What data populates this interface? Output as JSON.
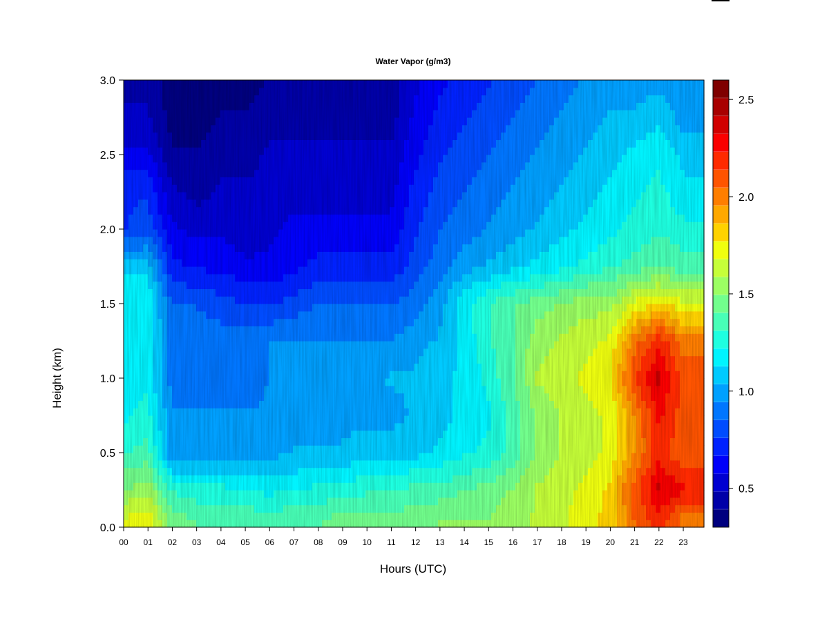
{
  "chart_data": {
    "type": "heatmap",
    "title": "Water Vapor (g/m3)",
    "xlabel": "Hours (UTC)",
    "ylabel": "Height (km)",
    "x_tick_labels": [
      "00",
      "01",
      "02",
      "03",
      "04",
      "05",
      "06",
      "07",
      "08",
      "09",
      "10",
      "11",
      "12",
      "13",
      "14",
      "15",
      "16",
      "17",
      "18",
      "19",
      "20",
      "21",
      "22",
      "23"
    ],
    "x_ticks": [
      0,
      1,
      2,
      3,
      4,
      5,
      6,
      7,
      8,
      9,
      10,
      11,
      12,
      13,
      14,
      15,
      16,
      17,
      18,
      19,
      20,
      21,
      22,
      23
    ],
    "xlim": [
      0,
      23.85
    ],
    "y_tick_labels": [
      "0.0",
      "0.5",
      "1.0",
      "1.5",
      "2.0",
      "2.5",
      "3.0"
    ],
    "y_ticks": [
      0,
      0.5,
      1.0,
      1.5,
      2.0,
      2.5,
      3.0
    ],
    "ylim": [
      0,
      3.0
    ],
    "hours": [
      0,
      1,
      2,
      3,
      4,
      5,
      6,
      7,
      8,
      9,
      10,
      11,
      12,
      13,
      14,
      15,
      16,
      17,
      18,
      19,
      20,
      21,
      22,
      23
    ],
    "heights_km": [
      0.05,
      0.25,
      0.5,
      0.75,
      1.0,
      1.25,
      1.5,
      1.75,
      2.0,
      2.25,
      2.5,
      2.75,
      3.0
    ],
    "z_values": [
      [
        1.7,
        1.5,
        1.3,
        1.2,
        1.2,
        1.15,
        1.2,
        1.1,
        0.75,
        0.75,
        0.6,
        0.5,
        0.45
      ],
      [
        1.75,
        1.55,
        1.35,
        1.25,
        1.2,
        1.2,
        1.2,
        1.1,
        0.8,
        0.75,
        0.6,
        0.5,
        0.45
      ],
      [
        1.45,
        1.3,
        0.95,
        0.95,
        0.9,
        0.9,
        0.85,
        0.7,
        0.6,
        0.5,
        0.4,
        0.35,
        0.35
      ],
      [
        1.4,
        1.25,
        0.95,
        0.95,
        0.9,
        0.9,
        0.85,
        0.65,
        0.55,
        0.45,
        0.4,
        0.35,
        0.35
      ],
      [
        1.4,
        1.25,
        1.0,
        0.95,
        0.9,
        0.9,
        0.8,
        0.65,
        0.55,
        0.5,
        0.45,
        0.4,
        0.35
      ],
      [
        1.4,
        1.2,
        1.0,
        0.95,
        0.9,
        0.9,
        0.75,
        0.6,
        0.5,
        0.5,
        0.45,
        0.4,
        0.35
      ],
      [
        1.35,
        1.2,
        1.0,
        0.95,
        0.95,
        0.95,
        0.75,
        0.6,
        0.55,
        0.5,
        0.5,
        0.45,
        0.4
      ],
      [
        1.4,
        1.2,
        1.05,
        0.95,
        0.95,
        0.95,
        0.8,
        0.65,
        0.6,
        0.55,
        0.5,
        0.45,
        0.4
      ],
      [
        1.4,
        1.25,
        1.05,
        1.0,
        1.0,
        0.95,
        0.85,
        0.7,
        0.6,
        0.55,
        0.5,
        0.45,
        0.4
      ],
      [
        1.45,
        1.25,
        1.05,
        1.0,
        1.0,
        0.95,
        0.85,
        0.7,
        0.6,
        0.55,
        0.5,
        0.45,
        0.4
      ],
      [
        1.45,
        1.3,
        1.1,
        1.0,
        1.0,
        0.95,
        0.85,
        0.7,
        0.6,
        0.55,
        0.5,
        0.45,
        0.4
      ],
      [
        1.45,
        1.3,
        1.1,
        1.0,
        1.05,
        0.95,
        0.85,
        0.7,
        0.6,
        0.55,
        0.5,
        0.45,
        0.45
      ],
      [
        1.45,
        1.35,
        1.1,
        1.05,
        1.05,
        1.0,
        0.9,
        0.8,
        0.75,
        0.7,
        0.65,
        0.6,
        0.55
      ],
      [
        1.5,
        1.35,
        1.15,
        1.1,
        1.1,
        1.05,
        1.0,
        0.9,
        0.85,
        0.8,
        0.75,
        0.7,
        0.65
      ],
      [
        1.5,
        1.4,
        1.2,
        1.15,
        1.15,
        1.15,
        1.2,
        1.0,
        0.9,
        0.85,
        0.8,
        0.75,
        0.7
      ],
      [
        1.5,
        1.45,
        1.25,
        1.2,
        1.25,
        1.3,
        1.3,
        1.05,
        0.95,
        0.9,
        0.85,
        0.8,
        0.75
      ],
      [
        1.55,
        1.5,
        1.35,
        1.35,
        1.4,
        1.4,
        1.4,
        1.1,
        1.0,
        0.95,
        0.9,
        0.85,
        0.8
      ],
      [
        1.6,
        1.6,
        1.5,
        1.5,
        1.6,
        1.55,
        1.45,
        1.15,
        1.05,
        1.0,
        0.95,
        0.9,
        0.85
      ],
      [
        1.65,
        1.65,
        1.6,
        1.6,
        1.65,
        1.6,
        1.5,
        1.2,
        1.1,
        1.05,
        1.0,
        0.95,
        0.9
      ],
      [
        1.75,
        1.7,
        1.65,
        1.65,
        1.7,
        1.65,
        1.55,
        1.25,
        1.15,
        1.1,
        1.05,
        1.0,
        0.95
      ],
      [
        1.8,
        1.8,
        1.7,
        1.7,
        1.75,
        1.7,
        1.55,
        1.3,
        1.2,
        1.15,
        1.1,
        1.05,
        1.0
      ],
      [
        2.05,
        2.1,
        1.95,
        1.95,
        2.15,
        2.0,
        1.7,
        1.35,
        1.25,
        1.2,
        1.15,
        1.05,
        1.0
      ],
      [
        2.2,
        2.35,
        2.2,
        2.25,
        2.35,
        2.2,
        1.8,
        1.4,
        1.3,
        1.25,
        1.2,
        1.1,
        1.0
      ],
      [
        2.0,
        2.25,
        2.05,
        2.1,
        2.1,
        2.0,
        1.7,
        1.35,
        1.25,
        1.15,
        1.1,
        1.0,
        0.95
      ]
    ],
    "colorbar": {
      "range": [
        0.3,
        2.6
      ],
      "tick_values": [
        0.5,
        1.0,
        1.5,
        2.0,
        2.5
      ],
      "tick_labels": [
        "0.5",
        "1.0",
        "1.5",
        "2.0",
        "2.5"
      ],
      "colors": [
        "#00007f",
        "#0000a8",
        "#0000d1",
        "#0000fa",
        "#0022ff",
        "#004cff",
        "#0076ff",
        "#00a0ff",
        "#00caff",
        "#00f4ff",
        "#1effe0",
        "#48ffb7",
        "#72ff8d",
        "#9cff63",
        "#c6ff39",
        "#f0ff0f",
        "#ffd200",
        "#ffa800",
        "#ff7e00",
        "#ff5400",
        "#ff2a00",
        "#fa0000",
        "#d10000",
        "#a80000",
        "#7f0000"
      ]
    },
    "grid": false,
    "legend": "colorbar-right"
  }
}
